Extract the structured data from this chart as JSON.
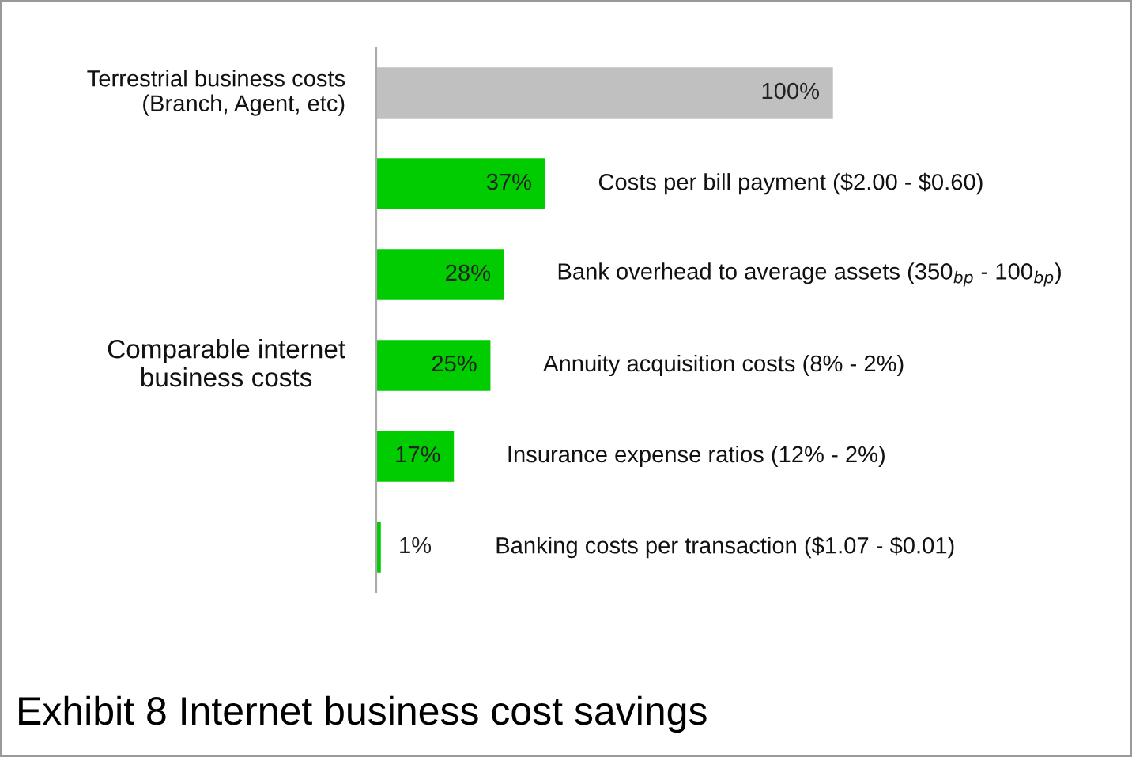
{
  "chart_data": {
    "type": "bar",
    "orientation": "horizontal",
    "title": "Exhibit 8 Internet business cost savings",
    "categories": [
      null,
      "Costs per bill payment ($2.00 - $0.60)",
      "Bank overhead to average assets (350$_{bp}$ - 100$_{bp}$)",
      "Annuity acquisition costs (8% - 2%)",
      "Insurance expense ratios (12% - 2%)",
      "Banking costs per transaction ($1.07 - $0.01)"
    ],
    "values": [
      100,
      37,
      28,
      25,
      17,
      1
    ],
    "colors": [
      "#c0c0c0",
      "#00cc00",
      "#00cc00",
      "#00cc00",
      "#00cc00",
      "#00cc00"
    ],
    "value_labels": [
      "100%",
      "37%",
      "28%",
      "25%",
      "17%",
      "1%"
    ],
    "annotations": [
      "Terrestrial business costs\n(Branch, Agent, etc)",
      "Comparable internet\nbusiness costs"
    ]
  }
}
